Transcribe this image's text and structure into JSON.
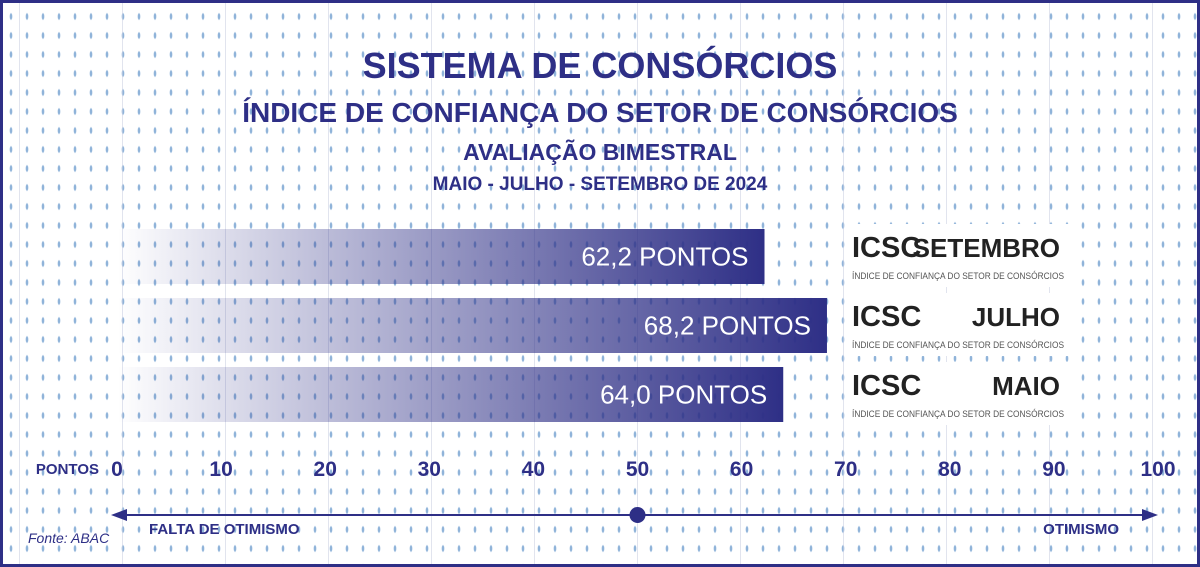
{
  "header": {
    "title": "SISTEMA DE CONSÓRCIOS",
    "subtitle": "ÍNDICE DE CONFIANÇA DO SETOR DE CONSÓRCIOS",
    "subtitle2": "AVALIAÇÃO BIMESTRAL",
    "period": "MAIO - JULHO - SETEMBRO DE 2024"
  },
  "chart_data": {
    "type": "bar",
    "orientation": "horizontal",
    "categories": [
      "SETEMBRO",
      "JULHO",
      "MAIO"
    ],
    "values": [
      62.2,
      68.2,
      64.0
    ],
    "value_labels": [
      "62,2 PONTOS",
      "68,2 PONTOS",
      "64,0 PONTOS"
    ],
    "xlim": [
      0,
      100
    ],
    "xticks": [
      0,
      10,
      20,
      30,
      40,
      50,
      60,
      70,
      80,
      90,
      100
    ],
    "xlabel": "PONTOS",
    "neutral_point": 50,
    "axis_left_label": "FALTA DE OTIMISMO",
    "axis_right_label": "OTIMISMO",
    "bar_color": "#2e2f86",
    "grid": true
  },
  "legend_badges": [
    {
      "acronym": "ICSC",
      "month": "SETEMBRO",
      "description": "ÍNDICE DE CONFIANÇA DO SETOR DE CONSÓRCIOS"
    },
    {
      "acronym": "ICSC",
      "month": "JULHO",
      "description": "ÍNDICE DE CONFIANÇA DO SETOR DE CONSÓRCIOS"
    },
    {
      "acronym": "ICSC",
      "month": "MAIO",
      "description": "ÍNDICE DE CONFIANÇA DO SETOR DE CONSÓRCIOS"
    }
  ],
  "source": "Fonte: ABAC",
  "colors": {
    "primary": "#2e2f86",
    "text_dark": "#222222",
    "background": "#ffffff"
  }
}
